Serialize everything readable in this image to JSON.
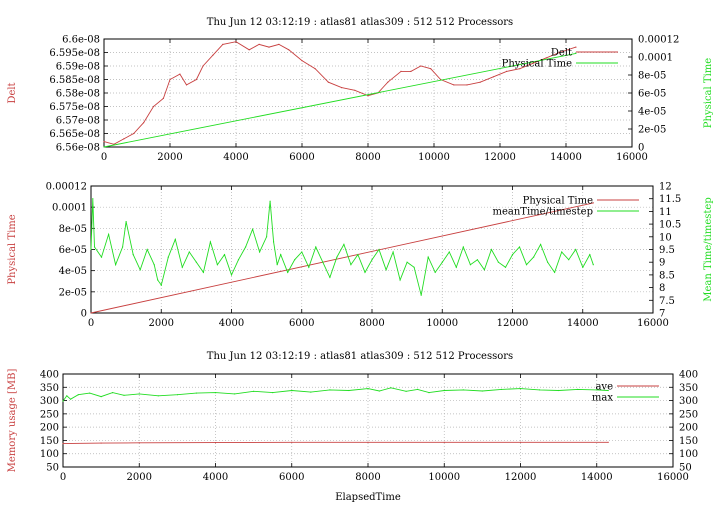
{
  "colors": {
    "red": "#c84040",
    "green": "#22dd22",
    "grid": "#b0b0b0",
    "axis": "#000000"
  },
  "chart_data": [
    {
      "type": "line",
      "title": "Thu Jun 12 03:12:19 : atlas81 atlas309 : 512 512 Processors",
      "xlabel": "",
      "ylabel": "Delt",
      "y2label": "Physical Time",
      "xlim": [
        0,
        16000
      ],
      "ylim": [
        6.56e-08,
        6.6e-08
      ],
      "y2lim": [
        0,
        0.00012
      ],
      "x_ticks": [
        "0",
        "2000",
        "4000",
        "6000",
        "8000",
        "10000",
        "12000",
        "14000",
        "16000"
      ],
      "y_ticks": [
        "6.56e-08",
        "6.565e-08",
        "6.57e-08",
        "6.575e-08",
        "6.58e-08",
        "6.585e-08",
        "6.59e-08",
        "6.595e-08",
        "6.6e-08"
      ],
      "y2_ticks": [
        "0",
        "2e-05",
        "4e-05",
        "6e-05",
        "8e-05",
        "0.0001",
        "0.00012"
      ],
      "grid": true,
      "legend_position": "top-right",
      "series": [
        {
          "name": "Delt",
          "axis": "left",
          "color": "red",
          "x": [
            0,
            300,
            600,
            900,
            1200,
            1500,
            1800,
            2000,
            2300,
            2500,
            2800,
            3000,
            3300,
            3600,
            4000,
            4400,
            4700,
            5000,
            5300,
            5600,
            6000,
            6400,
            6800,
            7200,
            7600,
            8000,
            8300,
            8600,
            9000,
            9300,
            9600,
            9900,
            10200,
            10600,
            11000,
            11400,
            11800,
            12200,
            12600,
            13000,
            13400,
            13800,
            14300
          ],
          "y": [
            6.562e-08,
            6.561e-08,
            6.563e-08,
            6.565e-08,
            6.569e-08,
            6.575e-08,
            6.578e-08,
            6.585e-08,
            6.587e-08,
            6.583e-08,
            6.585e-08,
            6.59e-08,
            6.594e-08,
            6.598e-08,
            6.599e-08,
            6.596e-08,
            6.598e-08,
            6.597e-08,
            6.598e-08,
            6.596e-08,
            6.592e-08,
            6.589e-08,
            6.584e-08,
            6.582e-08,
            6.581e-08,
            6.579e-08,
            6.58e-08,
            6.584e-08,
            6.588e-08,
            6.588e-08,
            6.59e-08,
            6.589e-08,
            6.585e-08,
            6.583e-08,
            6.583e-08,
            6.584e-08,
            6.586e-08,
            6.588e-08,
            6.589e-08,
            6.591e-08,
            6.593e-08,
            6.595e-08,
            6.597e-08
          ]
        },
        {
          "name": "Physical Time",
          "axis": "right",
          "color": "green",
          "x": [
            0,
            14300
          ],
          "y": [
            0,
            0.000104
          ]
        }
      ]
    },
    {
      "type": "line",
      "title": "",
      "xlabel": "",
      "ylabel": "Physical Time",
      "y2label": "Mean Time/timestep",
      "xlim": [
        0,
        16000
      ],
      "ylim": [
        0,
        0.00012
      ],
      "y2lim": [
        7,
        12
      ],
      "x_ticks": [
        "0",
        "2000",
        "4000",
        "6000",
        "8000",
        "10000",
        "12000",
        "14000",
        "16000"
      ],
      "y_ticks": [
        "0",
        "2e-05",
        "4e-05",
        "6e-05",
        "8e-05",
        "0.0001",
        "0.00012"
      ],
      "y2_ticks": [
        "7",
        "7.5",
        "8",
        "8.5",
        "9",
        "9.5",
        "10",
        "10.5",
        "11",
        "11.5",
        "12"
      ],
      "grid": true,
      "legend_position": "top-right",
      "series": [
        {
          "name": "Physical Time",
          "axis": "left",
          "color": "red",
          "x": [
            0,
            14300
          ],
          "y": [
            0,
            0.000104
          ]
        },
        {
          "name": "meanTime/timestep",
          "axis": "right",
          "color": "green",
          "x": [
            0,
            50,
            100,
            300,
            500,
            700,
            900,
            1000,
            1200,
            1400,
            1600,
            1800,
            1900,
            2000,
            2200,
            2400,
            2600,
            2800,
            3000,
            3200,
            3400,
            3600,
            3800,
            4000,
            4200,
            4400,
            4600,
            4800,
            5000,
            5100,
            5200,
            5300,
            5400,
            5600,
            5800,
            6000,
            6200,
            6400,
            6600,
            6800,
            7000,
            7200,
            7400,
            7600,
            7800,
            8000,
            8200,
            8400,
            8600,
            8800,
            9000,
            9200,
            9400,
            9600,
            9800,
            10000,
            10200,
            10400,
            10600,
            10800,
            11000,
            11200,
            11400,
            11600,
            11800,
            12000,
            12200,
            12400,
            12600,
            12800,
            13000,
            13200,
            13400,
            13600,
            13800,
            14000,
            14200,
            14300
          ],
          "y": [
            9.5,
            11.5,
            9.6,
            9.2,
            10.1,
            8.9,
            9.6,
            10.6,
            9.3,
            8.7,
            9.5,
            8.9,
            8.3,
            8.1,
            9.2,
            9.9,
            8.8,
            9.4,
            9.0,
            8.6,
            9.8,
            8.9,
            9.3,
            8.5,
            9.1,
            9.6,
            10.3,
            9.4,
            10.0,
            11.4,
            9.8,
            8.9,
            9.3,
            8.6,
            9.1,
            9.4,
            8.8,
            9.6,
            9.0,
            8.4,
            9.2,
            9.7,
            8.9,
            9.3,
            8.6,
            9.1,
            9.5,
            8.7,
            9.4,
            8.3,
            9.0,
            8.8,
            7.7,
            9.2,
            8.6,
            9.0,
            9.4,
            8.8,
            9.6,
            8.9,
            9.1,
            8.7,
            9.5,
            9.0,
            8.8,
            9.3,
            9.6,
            8.9,
            9.2,
            9.7,
            9.0,
            8.6,
            9.4,
            9.1,
            9.5,
            8.8,
            9.3,
            8.9
          ]
        }
      ]
    },
    {
      "type": "line",
      "title": "Thu Jun 12 03:12:19 : atlas81 atlas309 : 512 512 Processors",
      "xlabel": "ElapsedTime",
      "ylabel": "Memory usage [MB]",
      "y2label": "",
      "xlim": [
        0,
        16000
      ],
      "ylim": [
        50,
        400
      ],
      "y2lim": [
        50,
        400
      ],
      "x_ticks": [
        "0",
        "2000",
        "4000",
        "6000",
        "8000",
        "10000",
        "12000",
        "14000",
        "16000"
      ],
      "y_ticks": [
        "50",
        "100",
        "150",
        "200",
        "250",
        "300",
        "350",
        "400"
      ],
      "y2_ticks": [
        "50",
        "100",
        "150",
        "200",
        "250",
        "300",
        "350",
        "400"
      ],
      "grid": true,
      "legend_position": "top-right",
      "series": [
        {
          "name": "ave",
          "axis": "left",
          "color": "red",
          "x": [
            0,
            1000,
            2000,
            4000,
            6000,
            8000,
            10000,
            12000,
            14300
          ],
          "y": [
            138,
            140,
            141,
            142,
            143,
            143,
            143,
            143,
            143
          ]
        },
        {
          "name": "max",
          "axis": "left",
          "color": "green",
          "x": [
            0,
            100,
            200,
            400,
            700,
            1000,
            1300,
            1600,
            2000,
            2500,
            3000,
            3500,
            4000,
            4500,
            5000,
            5500,
            6000,
            6500,
            7000,
            7500,
            8000,
            8300,
            8600,
            9000,
            9300,
            9600,
            10000,
            10500,
            11000,
            11500,
            12000,
            12500,
            13000,
            13500,
            14000,
            14300
          ],
          "y": [
            298,
            318,
            305,
            322,
            328,
            315,
            330,
            320,
            325,
            318,
            322,
            328,
            330,
            325,
            335,
            330,
            338,
            332,
            340,
            338,
            345,
            336,
            348,
            335,
            342,
            330,
            338,
            340,
            336,
            342,
            345,
            340,
            338,
            342,
            340,
            338
          ]
        }
      ]
    }
  ]
}
